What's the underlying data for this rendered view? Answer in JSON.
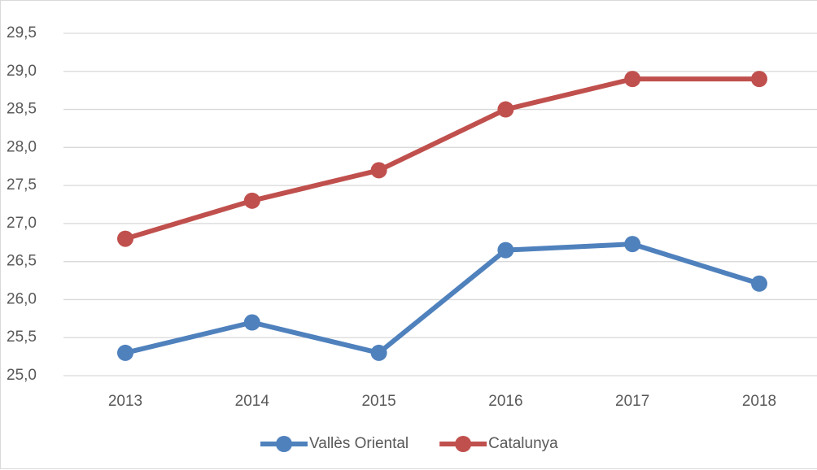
{
  "chart_data": {
    "type": "line",
    "categories": [
      "2013",
      "2014",
      "2015",
      "2016",
      "2017",
      "2018"
    ],
    "series": [
      {
        "name": "Vallès Oriental",
        "color": "#4f81bd",
        "values": [
          25.3,
          25.7,
          25.3,
          26.65,
          26.73,
          26.21
        ]
      },
      {
        "name": "Catalunya",
        "color": "#c0504d",
        "values": [
          26.8,
          27.3,
          27.7,
          28.5,
          28.9,
          28.9
        ]
      }
    ],
    "ylim": [
      25.0,
      29.5
    ],
    "yticks": [
      {
        "value": 25.0,
        "label": "25,0"
      },
      {
        "value": 25.5,
        "label": "25,5"
      },
      {
        "value": 26.0,
        "label": "26,0"
      },
      {
        "value": 26.5,
        "label": "26,5"
      },
      {
        "value": 27.0,
        "label": "27,0"
      },
      {
        "value": 27.5,
        "label": "27,5"
      },
      {
        "value": 28.0,
        "label": "28,0"
      },
      {
        "value": 28.5,
        "label": "28,5"
      },
      {
        "value": 29.0,
        "label": "29,0"
      },
      {
        "value": 29.5,
        "label": "29,5"
      }
    ],
    "grid": true,
    "legend": "bottom"
  }
}
